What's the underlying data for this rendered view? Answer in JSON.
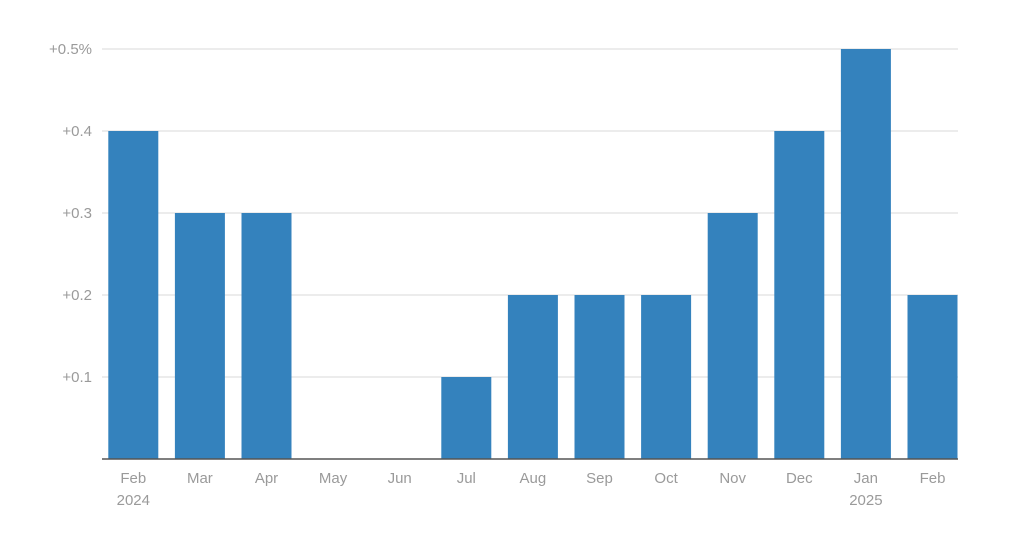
{
  "chart_data": {
    "type": "bar",
    "title": "",
    "xlabel": "",
    "ylabel": "",
    "categories": [
      [
        "Feb",
        "2024"
      ],
      [
        "Mar"
      ],
      [
        "Apr"
      ],
      [
        "May"
      ],
      [
        "Jun"
      ],
      [
        "Jul"
      ],
      [
        "Aug"
      ],
      [
        "Sep"
      ],
      [
        "Oct"
      ],
      [
        "Nov"
      ],
      [
        "Dec"
      ],
      [
        "Jan",
        "2025"
      ],
      [
        "Feb"
      ]
    ],
    "values": [
      0.4,
      0.3,
      0.3,
      0.0,
      0.0,
      0.1,
      0.2,
      0.2,
      0.2,
      0.3,
      0.4,
      0.5,
      0.2
    ],
    "ylim": [
      0,
      0.5
    ],
    "yticks": [
      {
        "value": 0.1,
        "label": "+0.1"
      },
      {
        "value": 0.2,
        "label": "+0.2"
      },
      {
        "value": 0.3,
        "label": "+0.3"
      },
      {
        "value": 0.4,
        "label": "+0.4"
      },
      {
        "value": 0.5,
        "label": "+0.5%"
      }
    ],
    "grid": true,
    "legend": "none",
    "colors": {
      "bar": "#3482bd",
      "grid": "#d9d9d9",
      "axis": "#555555",
      "tick_text": "#9a9a9a"
    }
  }
}
